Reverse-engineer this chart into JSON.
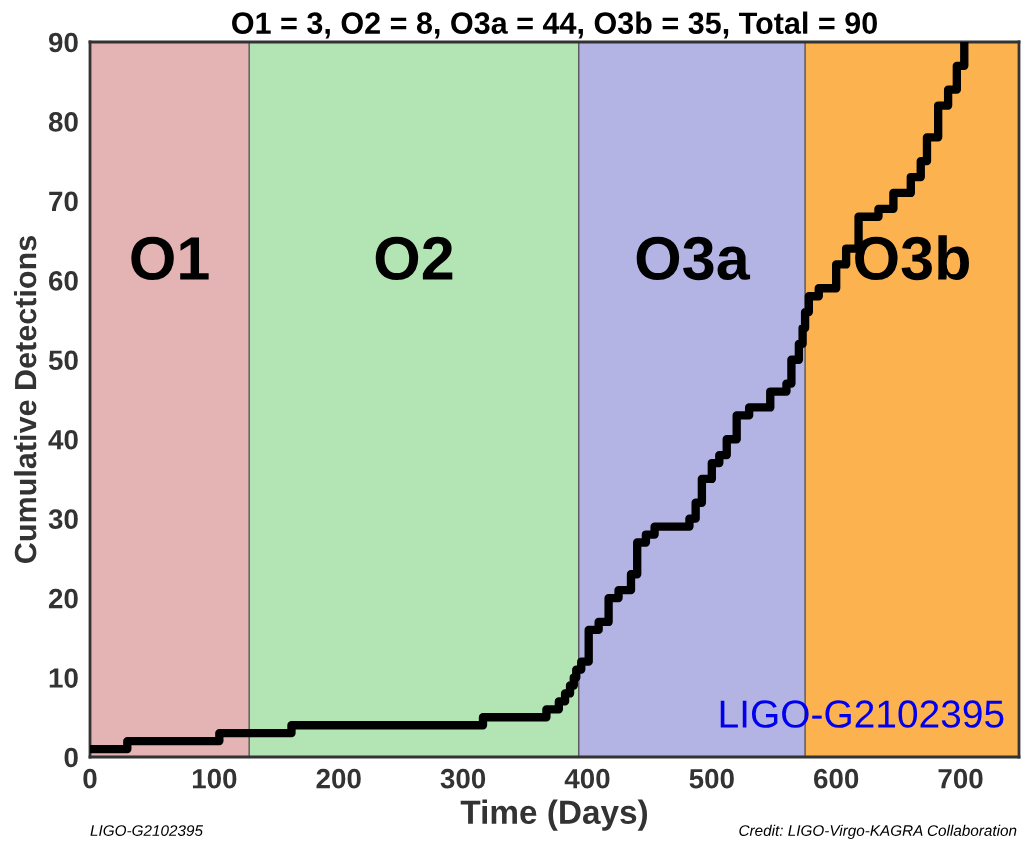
{
  "chart_data": {
    "type": "step",
    "title": "O1 = 3, O2 = 8, O3a = 44, O3b = 35, Total = 90",
    "xlabel": "Time (Days)",
    "ylabel": "Cumulative Detections",
    "x": [
      2,
      30,
      104,
      162,
      316,
      367,
      377,
      382,
      386,
      389,
      391,
      395,
      401,
      409,
      417,
      425,
      435,
      440,
      447,
      454,
      482,
      487,
      492,
      500,
      506,
      512,
      520,
      530,
      547,
      560,
      564,
      570,
      573,
      575,
      578,
      586,
      600,
      608,
      618,
      634,
      646,
      660,
      668,
      673,
      682,
      690,
      697,
      703
    ],
    "series": [
      {
        "color": "#000000",
        "values": [
          1,
          2,
          3,
          4,
          5,
          6,
          7,
          8,
          9,
          10,
          11,
          12,
          16,
          17,
          20,
          21,
          23,
          27,
          28,
          29,
          30,
          32,
          35,
          37,
          38,
          40,
          43,
          44,
          46,
          47,
          50,
          52,
          54,
          56,
          58,
          59,
          62,
          64,
          68,
          69,
          71,
          73,
          75,
          78,
          82,
          84,
          87,
          90
        ]
      }
    ],
    "xlim": [
      0,
      747
    ],
    "ylim": [
      0,
      90
    ],
    "xticks": [
      0,
      100,
      200,
      300,
      400,
      500,
      600,
      700
    ],
    "yticks": [
      0,
      10,
      20,
      30,
      40,
      50,
      60,
      70,
      80,
      90
    ],
    "bands": [
      {
        "axis": "x",
        "from": 0,
        "to": 128,
        "label": "O1",
        "color": "#e4b3b3"
      },
      {
        "axis": "x",
        "from": 128,
        "to": 393,
        "label": "O2",
        "color": "#b3e4b3"
      },
      {
        "axis": "x",
        "from": 393,
        "to": 575,
        "label": "O3a",
        "color": "#b3b3e4"
      },
      {
        "axis": "x",
        "from": 575,
        "to": 747,
        "label": "O3b",
        "color": "#fdb250"
      }
    ],
    "annotations": [
      "LIGO-G2102395",
      "LIGO-G2102395",
      "Credit: LIGO-Virgo-KAGRA Collaboration"
    ],
    "grid": false,
    "legend": false
  }
}
